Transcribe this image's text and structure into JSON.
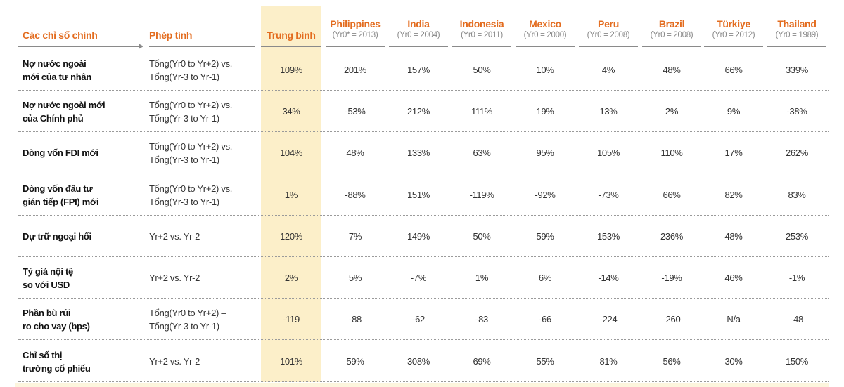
{
  "header": {
    "metric_label": "Các chỉ số chính",
    "calc_label": "Phép tính",
    "avg_label": "Trung bình",
    "countries": [
      {
        "name": "Philippines",
        "sub": "(Yr0* = 2013)"
      },
      {
        "name": "India",
        "sub": "(Yr0 = 2004)"
      },
      {
        "name": "Indonesia",
        "sub": "(Yr0 = 2011)"
      },
      {
        "name": "Mexico",
        "sub": "(Yr0 = 2000)"
      },
      {
        "name": "Peru",
        "sub": "(Yr0 = 2008)"
      },
      {
        "name": "Brazil",
        "sub": "(Yr0 = 2008)"
      },
      {
        "name": "Türkiye",
        "sub": "(Yr0 = 2012)"
      },
      {
        "name": "Thailand",
        "sub": "(Yr0 = 1989)"
      }
    ]
  },
  "rows": [
    {
      "label": "Nợ nước ngoài\nmới của tư nhân",
      "calc": "Tổng(Yr0 to Yr+2) vs.\nTổng(Yr-3 to Yr-1)",
      "avg": "109%",
      "values": [
        "201%",
        "157%",
        "50%",
        "10%",
        "4%",
        "48%",
        "66%",
        "339%"
      ]
    },
    {
      "label": "Nợ nước ngoài mới\ncủa Chính phủ",
      "calc": "Tổng(Yr0 to Yr+2) vs.\nTổng(Yr-3 to Yr-1)",
      "avg": "34%",
      "values": [
        "-53%",
        "212%",
        "111%",
        "19%",
        "13%",
        "2%",
        "9%",
        "-38%"
      ]
    },
    {
      "label": "Dòng vốn FDI mới",
      "calc": "Tổng(Yr0 to Yr+2) vs.\nTổng(Yr-3 to Yr-1)",
      "avg": "104%",
      "values": [
        "48%",
        "133%",
        "63%",
        "95%",
        "105%",
        "110%",
        "17%",
        "262%"
      ]
    },
    {
      "label": "Dòng vốn đầu tư\ngián tiếp (FPI) mới",
      "calc": "Tổng(Yr0 to Yr+2) vs.\nTổng(Yr-3 to Yr-1)",
      "avg": "1%",
      "values": [
        "-88%",
        "151%",
        "-119%",
        "-92%",
        "-73%",
        "66%",
        "82%",
        "83%"
      ]
    },
    {
      "label": "Dự trữ ngoại hối",
      "calc": "Yr+2 vs. Yr-2",
      "avg": "120%",
      "values": [
        "7%",
        "149%",
        "50%",
        "59%",
        "153%",
        "236%",
        "48%",
        "253%"
      ]
    },
    {
      "label": "Tỷ giá nội tệ\nso với USD",
      "calc": "Yr+2 vs. Yr-2",
      "avg": "2%",
      "values": [
        "5%",
        "-7%",
        "1%",
        "6%",
        "-14%",
        "-19%",
        "46%",
        "-1%"
      ]
    },
    {
      "label": "Phần bù rủi\nro cho vay (bps)",
      "calc": "Tổng(Yr0 to Yr+2) –\nTổng(Yr-3 to Yr-1)",
      "avg": "-119",
      "values": [
        "-88",
        "-62",
        "-83",
        "-66",
        "-224",
        "-260",
        "N/a",
        "-48"
      ]
    },
    {
      "label": "Chỉ số thị\ntrường cổ phiếu",
      "calc": "Yr+2 vs. Yr-2",
      "avg": "101%",
      "values": [
        "59%",
        "308%",
        "69%",
        "55%",
        "81%",
        "56%",
        "30%",
        "150%"
      ]
    }
  ]
}
